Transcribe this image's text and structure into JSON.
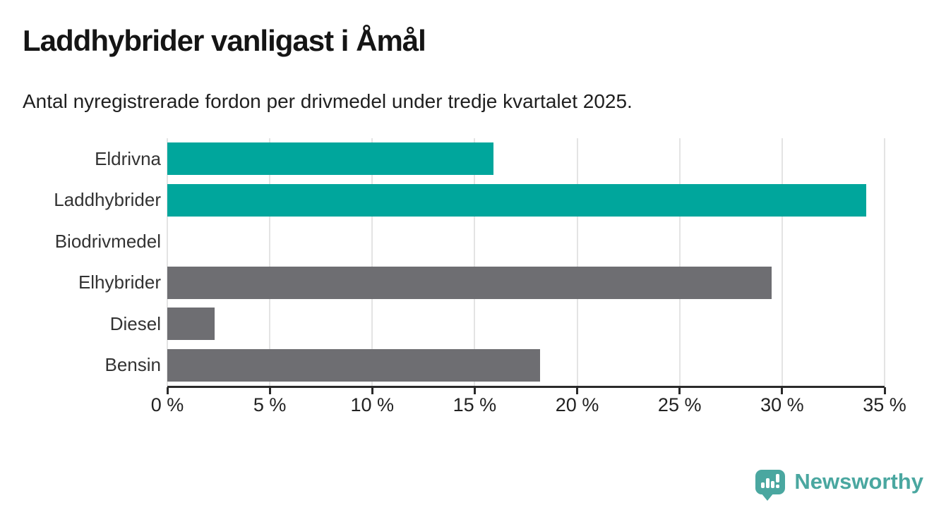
{
  "header": {
    "title": "Laddhybrider vanligast i Åmål",
    "subtitle": "Antal nyregistrerade fordon per drivmedel under tredje kvartalet 2025."
  },
  "chart_data": {
    "type": "bar",
    "orientation": "horizontal",
    "title": "Laddhybrider vanligast i Åmål",
    "subtitle": "Antal nyregistrerade fordon per drivmedel under tredje kvartalet 2025.",
    "categories": [
      "Eldrivna",
      "Laddhybrider",
      "Biodrivmedel",
      "Elhybrider",
      "Diesel",
      "Bensin"
    ],
    "values": [
      15.9,
      34.1,
      0,
      29.5,
      2.3,
      18.2
    ],
    "unit": "%",
    "xlim": [
      0,
      35
    ],
    "xticks": [
      0,
      5,
      10,
      15,
      20,
      25,
      30,
      35
    ],
    "xtick_labels": [
      "0 %",
      "5 %",
      "10 %",
      "15 %",
      "20 %",
      "25 %",
      "30 %",
      "35 %"
    ],
    "bar_colors": [
      "#00a69c",
      "#00a69c",
      "#6e6e72",
      "#6e6e72",
      "#6e6e72",
      "#6e6e72"
    ],
    "grid": true,
    "legend": false
  },
  "colors": {
    "highlight_teal": "#00a69c",
    "neutral_gray": "#6e6e72",
    "gridline": "#e4e4e4",
    "axis": "#2a2a2a",
    "logo_teal": "#4aa7a0"
  },
  "branding": {
    "logo_text": "Newsworthy",
    "logo_icon": "newsworthy-speech-bubble-bar-chart-icon"
  }
}
